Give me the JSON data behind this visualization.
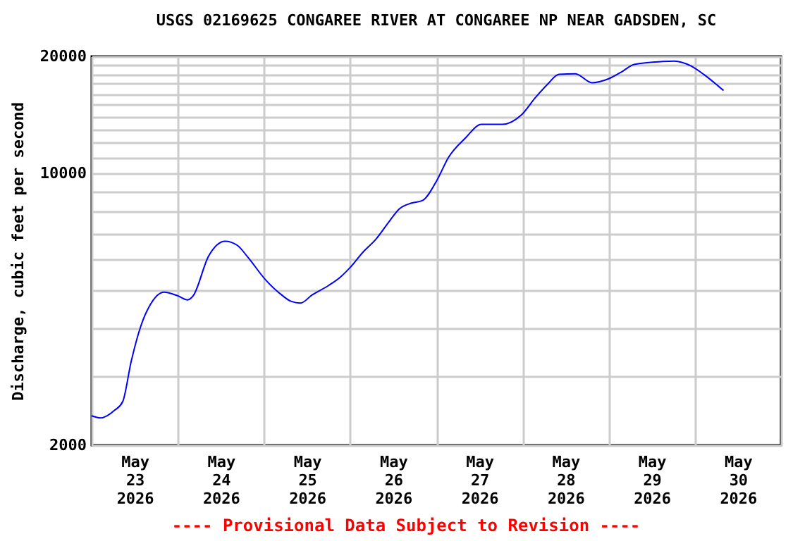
{
  "chart_data": {
    "type": "line",
    "title": "USGS 02169625 CONGAREE RIVER AT CONGAREE NP NEAR GADSDEN, SC",
    "ylabel": "Discharge, cubic feet per second",
    "x": [
      "2026-05-23T00:00",
      "2026-05-23T02:30",
      "2026-05-23T06:25",
      "2026-05-23T08:40",
      "2026-05-23T11:00",
      "2026-05-23T13:40",
      "2026-05-23T16:15",
      "2026-05-23T20:10",
      "2026-05-24T00:05",
      "2026-05-24T02:45",
      "2026-05-24T04:15",
      "2026-05-24T08:35",
      "2026-05-24T13:10",
      "2026-05-24T16:30",
      "2026-05-24T19:45",
      "2026-05-25T00:20",
      "2026-05-25T04:55",
      "2026-05-25T07:30",
      "2026-05-25T10:10",
      "2026-05-25T13:25",
      "2026-05-25T18:00",
      "2026-05-25T21:15",
      "2026-05-25T23:55",
      "2026-05-26T03:50",
      "2026-05-26T07:05",
      "2026-05-26T11:00",
      "2026-05-26T13:40",
      "2026-05-26T16:55",
      "2026-05-26T20:10",
      "2026-05-27T00:05",
      "2026-05-27T03:25",
      "2026-05-27T08:00",
      "2026-05-27T12:35",
      "2026-05-27T18:25",
      "2026-05-27T23:40",
      "2026-05-28T03:35",
      "2026-05-28T06:55",
      "2026-05-28T10:10",
      "2026-05-28T14:45",
      "2026-05-28T19:20",
      "2026-05-28T23:55",
      "2026-05-29T03:50",
      "2026-05-29T07:05",
      "2026-05-29T15:00",
      "2026-05-29T18:15",
      "2026-05-29T22:50",
      "2026-05-30T02:45",
      "2026-05-30T08:00"
    ],
    "series": [
      {
        "color": "#0000ff",
        "values": [
          2380,
          2350,
          2460,
          2590,
          3280,
          4040,
          4580,
          4950,
          4840,
          4730,
          4840,
          6130,
          6690,
          6540,
          6050,
          5340,
          4870,
          4690,
          4640,
          4870,
          5150,
          5410,
          5720,
          6310,
          6760,
          7550,
          8100,
          8380,
          8520,
          9570,
          11000,
          12300,
          13370,
          13370,
          14130,
          15660,
          16930,
          17990,
          18040,
          17110,
          17500,
          18300,
          19060,
          19400,
          19450,
          18920,
          17900,
          16330
        ]
      }
    ],
    "xlim": [
      "2026-05-23T00:00",
      "2026-05-31T00:00"
    ],
    "xticks": [
      {
        "value": "2026-05-23T00:00",
        "label": null
      },
      {
        "value": "2026-05-23T12:00",
        "label": "May 23 2026"
      },
      {
        "value": "2026-05-24T00:00",
        "label": null
      },
      {
        "value": "2026-05-24T12:00",
        "label": "May 24 2026"
      },
      {
        "value": "2026-05-25T00:00",
        "label": null
      },
      {
        "value": "2026-05-25T12:00",
        "label": "May 25 2026"
      },
      {
        "value": "2026-05-26T00:00",
        "label": null
      },
      {
        "value": "2026-05-26T12:00",
        "label": "May 26 2026"
      },
      {
        "value": "2026-05-27T00:00",
        "label": null
      },
      {
        "value": "2026-05-27T12:00",
        "label": "May 27 2026"
      },
      {
        "value": "2026-05-28T00:00",
        "label": null
      },
      {
        "value": "2026-05-28T12:00",
        "label": "May 28 2026"
      },
      {
        "value": "2026-05-29T00:00",
        "label": null
      },
      {
        "value": "2026-05-29T12:00",
        "label": "May 29 2026"
      },
      {
        "value": "2026-05-30T00:00",
        "label": null
      },
      {
        "value": "2026-05-30T12:00",
        "label": "May 30 2026"
      },
      {
        "value": "2026-05-31T00:00",
        "label": null
      }
    ],
    "ylim": [
      2000,
      20000
    ],
    "yticks": [
      2000,
      {
        "value": 3000,
        "label": null
      },
      {
        "value": 4000,
        "label": null
      },
      {
        "value": 5000,
        "label": null
      },
      {
        "value": 6000,
        "label": null
      },
      {
        "value": 7000,
        "label": null
      },
      {
        "value": 8000,
        "label": null
      },
      {
        "value": 9000,
        "label": null
      },
      10000,
      {
        "value": 11000,
        "label": null
      },
      {
        "value": 12000,
        "label": null
      },
      {
        "value": 13000,
        "label": null
      },
      {
        "value": 14000,
        "label": null
      },
      {
        "value": 15000,
        "label": null
      },
      {
        "value": 16000,
        "label": null
      },
      {
        "value": 17000,
        "label": null
      },
      {
        "value": 18000,
        "label": null
      },
      {
        "value": 19000,
        "label": null
      },
      20000
    ],
    "log": "y",
    "grid": true,
    "annotations": [
      "---- Provisional Data Subject to Revision ----"
    ]
  }
}
